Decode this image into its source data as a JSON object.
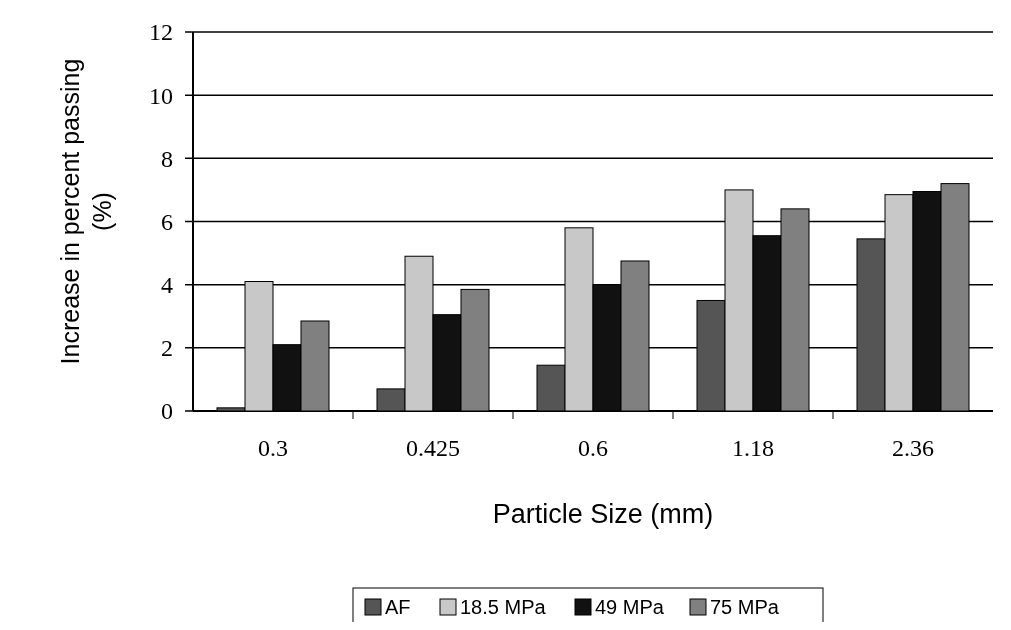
{
  "chart_data": {
    "type": "bar",
    "xlabel": "Particle Size (mm)",
    "ylabel": "Increase in percent passing (%)",
    "categories": [
      "0.3",
      "0.425",
      "0.6",
      "1.18",
      "2.36"
    ],
    "series": [
      {
        "name": "AF",
        "color": "#555555",
        "values": [
          0.1,
          0.7,
          1.45,
          3.5,
          5.45
        ]
      },
      {
        "name": "18.5 MPa",
        "color": "#c8c8c8",
        "values": [
          4.1,
          4.9,
          5.8,
          7.0,
          6.85
        ]
      },
      {
        "name": "49 MPa",
        "color": "#111111",
        "values": [
          2.1,
          3.05,
          4.0,
          5.55,
          6.95
        ]
      },
      {
        "name": "75 MPa",
        "color": "#808080",
        "values": [
          2.85,
          3.85,
          4.75,
          6.4,
          7.2
        ]
      }
    ],
    "ylim": [
      0,
      12
    ],
    "yticks": [
      0,
      2,
      4,
      6,
      8,
      10,
      12
    ],
    "grid": "y",
    "legend": "bottom"
  }
}
